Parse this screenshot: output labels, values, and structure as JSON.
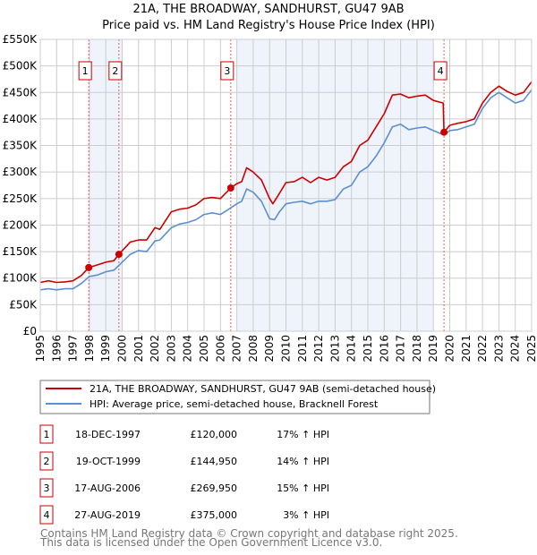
{
  "title_line1": "21A, THE BROADWAY, SANDHURST, GU47 9AB",
  "title_line2": "Price paid vs. HM Land Registry's House Price Index (HPI)",
  "colors": {
    "property": "#cc0000",
    "hpi": "#5b8fd0",
    "shade": "#eef3fc",
    "grid": "#cccccc",
    "marker_border": "#cc0000"
  },
  "chart_data": {
    "type": "line",
    "title": "Price paid vs. HM Land Registry's House Price Index (HPI)",
    "xlabel": "",
    "ylabel": "",
    "xlim": [
      1995,
      2025
    ],
    "ylim": [
      0,
      550000
    ],
    "grid": true,
    "y_ticks": [
      0,
      50000,
      100000,
      150000,
      200000,
      250000,
      300000,
      350000,
      400000,
      450000,
      500000,
      550000
    ],
    "y_tick_labels": [
      "£0",
      "£50K",
      "£100K",
      "£150K",
      "£200K",
      "£250K",
      "£300K",
      "£350K",
      "£400K",
      "£450K",
      "£500K",
      "£550K"
    ],
    "x_ticks": [
      1995,
      1996,
      1997,
      1998,
      1999,
      2000,
      2001,
      2002,
      2003,
      2004,
      2005,
      2006,
      2007,
      2008,
      2009,
      2010,
      2011,
      2012,
      2013,
      2014,
      2015,
      2016,
      2017,
      2018,
      2019,
      2020,
      2021,
      2022,
      2023,
      2024,
      2025
    ],
    "x_tick_labels": [
      "1995",
      "1996",
      "1997",
      "1998",
      "1999",
      "2000",
      "2001",
      "2002",
      "2003",
      "2004",
      "2005",
      "2006",
      "2007",
      "2008",
      "2009",
      "2010",
      "2011",
      "2012",
      "2013",
      "2014",
      "2015",
      "2016",
      "2017",
      "2018",
      "2019",
      "2020",
      "2021",
      "2022",
      "2023",
      "2024",
      "2025"
    ],
    "shaded_ranges": [
      [
        1998,
        2000
      ],
      [
        2007,
        2019
      ]
    ],
    "series": [
      {
        "name": "21A, THE BROADWAY, SANDHURST, GU47 9AB (semi-detached house)",
        "x": [
          1995,
          1995.5,
          1996,
          1996.5,
          1997,
          1997.5,
          1997.96,
          1998.5,
          1999,
          1999.5,
          1999.8,
          2000.5,
          2001,
          2001.5,
          2002,
          2002.3,
          2003,
          2003.5,
          2004,
          2004.5,
          2005,
          2005.5,
          2006,
          2006.63,
          2007,
          2007.3,
          2007.6,
          2008,
          2008.5,
          2009,
          2009.2,
          2009.5,
          2010,
          2010.5,
          2011,
          2011.5,
          2012,
          2012.5,
          2013,
          2013.5,
          2014,
          2014.5,
          2015,
          2015.5,
          2016,
          2016.5,
          2017,
          2017.5,
          2018,
          2018.5,
          2019,
          2019.6,
          2019.65,
          2020,
          2020.5,
          2021,
          2021.5,
          2022,
          2022.5,
          2023,
          2023.5,
          2024,
          2024.5,
          2025
        ],
        "y": [
          92000,
          95000,
          92000,
          93000,
          95000,
          105000,
          120000,
          125000,
          130000,
          133000,
          144950,
          168000,
          172000,
          172000,
          195000,
          192000,
          225000,
          230000,
          232000,
          238000,
          250000,
          252000,
          250000,
          269950,
          278000,
          282000,
          308000,
          300000,
          285000,
          250000,
          240000,
          255000,
          280000,
          282000,
          290000,
          280000,
          290000,
          285000,
          290000,
          310000,
          320000,
          350000,
          360000,
          385000,
          410000,
          445000,
          447000,
          440000,
          443000,
          445000,
          435000,
          430000,
          375000,
          388000,
          392000,
          395000,
          400000,
          430000,
          450000,
          462000,
          452000,
          445000,
          450000,
          470000
        ]
      },
      {
        "name": "HPI: Average price, semi-detached house, Bracknell Forest",
        "x": [
          1995,
          1995.5,
          1996,
          1996.5,
          1997,
          1997.5,
          1998,
          1998.5,
          1999,
          1999.5,
          2000,
          2000.5,
          2001,
          2001.5,
          2002,
          2002.3,
          2003,
          2003.5,
          2004,
          2004.5,
          2005,
          2005.5,
          2006,
          2006.5,
          2007,
          2007.3,
          2007.6,
          2008,
          2008.5,
          2009,
          2009.3,
          2009.6,
          2010,
          2010.5,
          2011,
          2011.5,
          2012,
          2012.5,
          2013,
          2013.5,
          2014,
          2014.5,
          2015,
          2015.5,
          2016,
          2016.5,
          2017,
          2017.5,
          2018,
          2018.5,
          2019,
          2019.65,
          2020,
          2020.5,
          2021,
          2021.5,
          2022,
          2022.5,
          2023,
          2023.5,
          2024,
          2024.5,
          2025
        ],
        "y": [
          78000,
          80000,
          78000,
          80000,
          80000,
          90000,
          103000,
          106000,
          112000,
          115000,
          130000,
          145000,
          152000,
          150000,
          170000,
          172000,
          195000,
          202000,
          205000,
          210000,
          220000,
          223000,
          220000,
          230000,
          240000,
          245000,
          268000,
          262000,
          245000,
          212000,
          210000,
          225000,
          240000,
          243000,
          245000,
          240000,
          245000,
          245000,
          248000,
          268000,
          275000,
          300000,
          310000,
          330000,
          355000,
          385000,
          390000,
          380000,
          383000,
          385000,
          378000,
          370000,
          378000,
          380000,
          385000,
          390000,
          420000,
          440000,
          450000,
          440000,
          430000,
          435000,
          455000
        ]
      }
    ],
    "sales": [
      {
        "label": "1",
        "x": 1997.96,
        "y": 120000
      },
      {
        "label": "2",
        "x": 1999.8,
        "y": 144950
      },
      {
        "label": "3",
        "x": 2006.63,
        "y": 269950
      },
      {
        "label": "4",
        "x": 2019.65,
        "y": 375000
      }
    ]
  },
  "legend": {
    "property": "21A, THE BROADWAY, SANDHURST, GU47 9AB (semi-detached house)",
    "hpi": "HPI: Average price, semi-detached house, Bracknell Forest",
    "placement": "below"
  },
  "transactions": [
    {
      "num": "1",
      "date": "18-DEC-1997",
      "price": "£120,000",
      "diff": "17% ↑ HPI"
    },
    {
      "num": "2",
      "date": "19-OCT-1999",
      "price": "£144,950",
      "diff": "14% ↑ HPI"
    },
    {
      "num": "3",
      "date": "17-AUG-2006",
      "price": "£269,950",
      "diff": "15% ↑ HPI"
    },
    {
      "num": "4",
      "date": "27-AUG-2019",
      "price": "£375,000",
      "diff": "3% ↑ HPI"
    }
  ],
  "footer": {
    "line1": "Contains HM Land Registry data © Crown copyright and database right 2025.",
    "line2": "This data is licensed under the Open Government Licence v3.0."
  }
}
